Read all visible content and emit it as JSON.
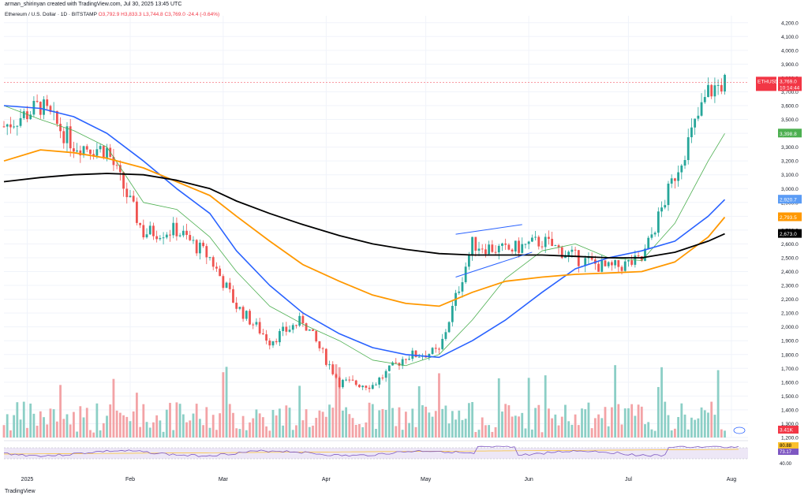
{
  "header": {
    "author_line": "arman_shirinyan created with TradingView.com, Jul 30, 2025 13:45 UTC"
  },
  "legend": {
    "symbol": "Ethereum / U.S. Dollar · 1D · BITSTAMP",
    "ohlc": "O3,792.9  H3,833.3  L3,744.8  C3,769.0  -24.4 (-0.64%)"
  },
  "footer": {
    "brand": "TradingView"
  },
  "price_labels": {
    "current": "3,769.0",
    "countdown": "10:14:44",
    "ticker": "ETHUSD",
    "ma20": "3,398.8",
    "ma50": "2,920.7",
    "ma100": "2,793.5",
    "ma200": "2,673.0",
    "volume": "3.41K",
    "rsi_a": "80.88",
    "rsi_b": "73.17",
    "rsi_level": "40.00"
  },
  "colors": {
    "up": "#26a69a",
    "down": "#ef5350",
    "vol_up": "#8ccfc6",
    "vol_down": "#f3a3a6",
    "ma20": "#4caf50",
    "ma50": "#2962ff",
    "ma100": "#ff9800",
    "ma200": "#000000",
    "rsi": "#7e57c2"
  },
  "chart_data": {
    "type": "line",
    "title": "",
    "y_ticks": [
      "4,200.0",
      "4,100.0",
      "4,000.0",
      "3,900.0",
      "3,800.0",
      "3,700.0",
      "3,600.0",
      "3,500.0",
      "3,400.0",
      "3,300.0",
      "3,200.0",
      "3,100.0",
      "3,000.0",
      "2,900.0",
      "2,800.0",
      "2,700.0",
      "2,600.0",
      "2,500.0",
      "2,400.0",
      "2,300.0",
      "2,200.0",
      "2,100.0",
      "2,000.0",
      "1,900.0",
      "1,800.0",
      "1,700.0",
      "1,600.0",
      "1,500.0",
      "1,400.0",
      "1,300.0",
      "1,200.0"
    ],
    "x_ticks": [
      "2025",
      "Feb",
      "Mar",
      "Apr",
      "May",
      "Jun",
      "Jul",
      "Aug"
    ],
    "ylim": [
      1200,
      4250
    ],
    "x_dates": [
      "2024-12-25",
      "2025-01-05",
      "2025-01-15",
      "2025-01-25",
      "2025-02-05",
      "2025-02-15",
      "2025-02-25",
      "2025-03-05",
      "2025-03-15",
      "2025-03-25",
      "2025-04-05",
      "2025-04-15",
      "2025-04-25",
      "2025-05-05",
      "2025-05-15",
      "2025-05-25",
      "2025-06-05",
      "2025-06-15",
      "2025-06-25",
      "2025-07-05",
      "2025-07-15",
      "2025-07-25",
      "2025-07-30"
    ],
    "close": [
      3450,
      3600,
      3320,
      3280,
      2680,
      2700,
      2500,
      2150,
      1900,
      2050,
      1600,
      1580,
      1790,
      1820,
      2600,
      2550,
      2620,
      2500,
      2420,
      2480,
      3100,
      3700,
      3769
    ],
    "series": [
      {
        "name": "MA20",
        "values": [
          3600,
          3500,
          3420,
          3300,
          2900,
          2850,
          2650,
          2400,
          2150,
          2020,
          1900,
          1760,
          1720,
          1800,
          2050,
          2350,
          2550,
          2600,
          2500,
          2480,
          2750,
          3200,
          3398.8
        ]
      },
      {
        "name": "MA50",
        "values": [
          3600,
          3580,
          3520,
          3400,
          3200,
          3000,
          2820,
          2550,
          2300,
          2100,
          1950,
          1850,
          1800,
          1780,
          1900,
          2050,
          2250,
          2420,
          2500,
          2550,
          2620,
          2800,
          2920.7
        ]
      },
      {
        "name": "MA100",
        "values": [
          3200,
          3280,
          3260,
          3220,
          3150,
          3050,
          2950,
          2800,
          2620,
          2450,
          2330,
          2230,
          2170,
          2150,
          2250,
          2330,
          2360,
          2380,
          2390,
          2400,
          2470,
          2650,
          2793.5
        ]
      },
      {
        "name": "MA200",
        "values": [
          3050,
          3080,
          3100,
          3110,
          3100,
          3060,
          3000,
          2910,
          2820,
          2740,
          2660,
          2600,
          2560,
          2530,
          2520,
          2520,
          2520,
          2510,
          2500,
          2500,
          2540,
          2620,
          2673.0
        ]
      }
    ]
  }
}
